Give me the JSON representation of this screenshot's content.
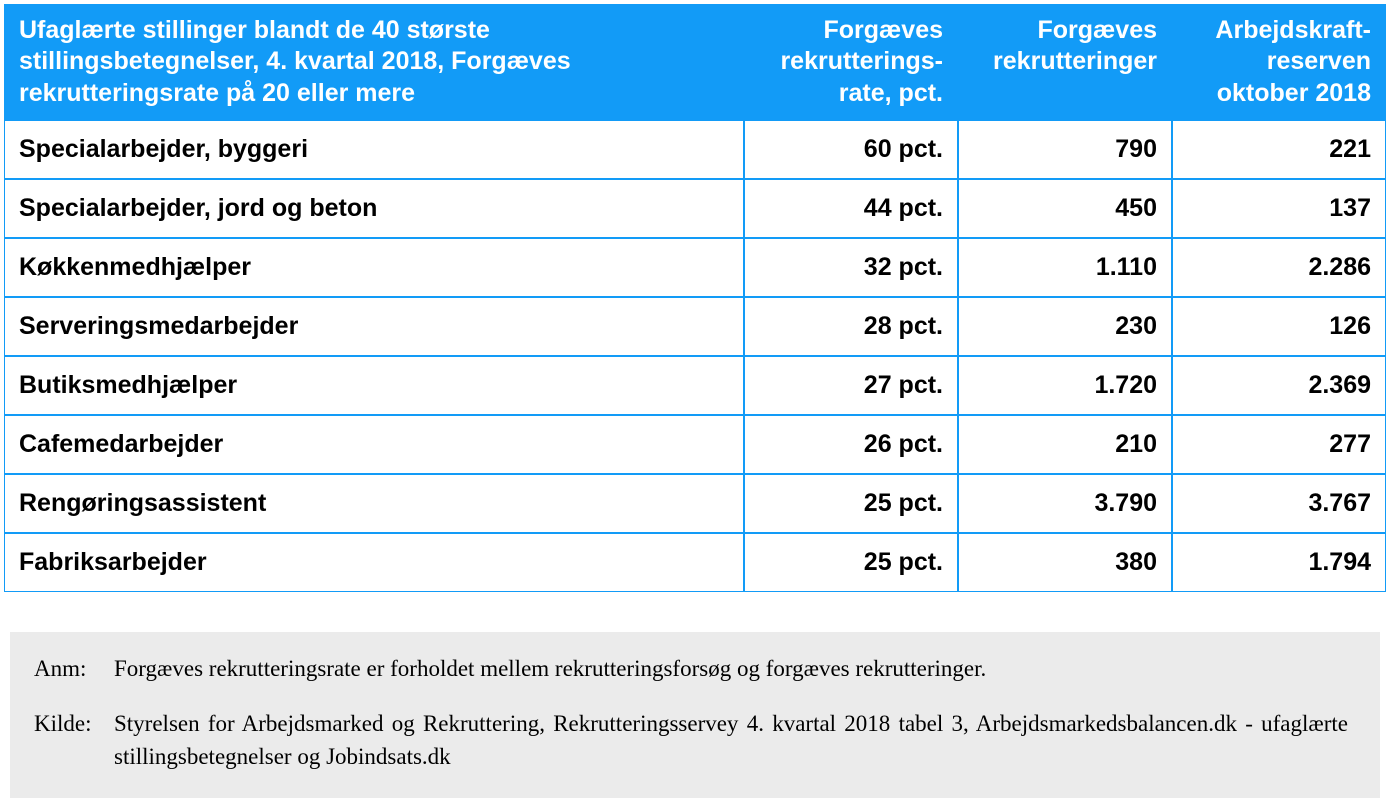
{
  "table": {
    "header_bg": "#129bf7",
    "header_fg": "#ffffff",
    "border_color": "#129bf7",
    "cell_bg": "#ffffff",
    "cell_fg": "#000000",
    "font_size_header": 25,
    "font_size_cell": 25,
    "columns": [
      "Ufaglærte stillinger blandt de 40 største stillingsbetegnelser, 4. kvartal 2018, Forgæves rekrutteringsrate på 20 eller mere",
      "Forgæves rekrutterings-rate, pct.",
      "Forgæves rekrutteringer",
      "Arbejdskraft-reserven oktober 2018"
    ],
    "rows": [
      {
        "label": "Specialarbejder, byggeri",
        "rate": "60 pct.",
        "fail": "790",
        "reserve": "221"
      },
      {
        "label": "Specialarbejder, jord og beton",
        "rate": "44 pct.",
        "fail": "450",
        "reserve": "137"
      },
      {
        "label": "Køkkenmedhjælper",
        "rate": "32 pct.",
        "fail": "1.110",
        "reserve": "2.286"
      },
      {
        "label": "Serveringsmedarbejder",
        "rate": "28 pct.",
        "fail": "230",
        "reserve": "126"
      },
      {
        "label": "Butiksmedhjælper",
        "rate": "27 pct.",
        "fail": "1.720",
        "reserve": "2.369"
      },
      {
        "label": "Cafemedarbejder",
        "rate": "26 pct.",
        "fail": "210",
        "reserve": "277"
      },
      {
        "label": "Rengøringsassistent",
        "rate": "25 pct.",
        "fail": "3.790",
        "reserve": "3.767"
      },
      {
        "label": "Fabriksarbejder",
        "rate": "25 pct.",
        "fail": "380",
        "reserve": "1.794"
      }
    ]
  },
  "footer": {
    "bg": "#ebebeb",
    "font_family": "Georgia, 'Times New Roman', serif",
    "font_size": 23,
    "note_label": "Anm:",
    "note_text": "Forgæves rekrutteringsrate er forholdet mellem rekrutteringsforsøg og forgæves rekrutteringer.",
    "source_label": "Kilde:",
    "source_text": "Styrelsen for Arbejdsmarked og Rekruttering, Rekrutteringsservey 4. kvartal 2018 tabel 3,  Arbejdsmarkedsbalancen.dk - ufaglærte stillingsbetegnelser og  Jobindsats.dk"
  }
}
